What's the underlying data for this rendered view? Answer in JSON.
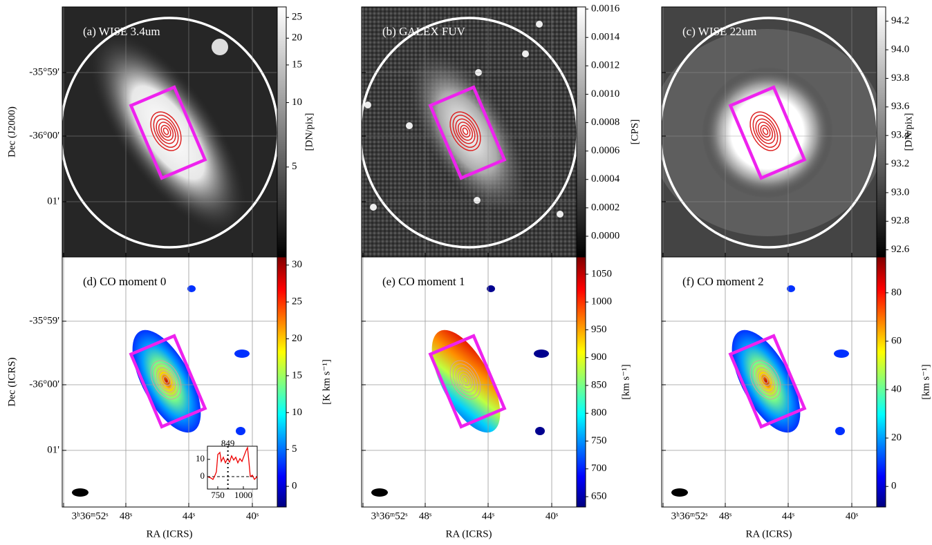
{
  "y_axis_labels": [
    "Dec (J2000)",
    "Dec (ICRS)"
  ],
  "dec_ticks": [
    "-35°59'",
    "-36°00'",
    "01'"
  ],
  "ra_ticks": [
    "3ʰ36ᵐ52ˢ",
    "48ˢ",
    "44ˢ",
    "40ˢ"
  ],
  "x_axis_label": "RA (ICRS)",
  "panels": [
    {
      "title": "(a) WISE 3.4um",
      "colorbar": {
        "label": "[DN/pix]",
        "colormap": "gray",
        "scale": "log",
        "lim": [
          1.9,
          28
        ],
        "ticks": [
          5,
          10,
          15,
          20,
          25
        ]
      }
    },
    {
      "title": "(b) GALEX FUV",
      "colorbar": {
        "label": "[CPS]",
        "colormap": "gray",
        "scale": "linear",
        "lim": [
          -0.000146,
          0.001615
        ],
        "ticks": [
          {
            "value": 0,
            "label": "0.0000"
          },
          {
            "value": 0.0002,
            "label": "0.0002"
          },
          {
            "value": 0.0004,
            "label": "0.0004"
          },
          {
            "value": 0.0006,
            "label": "0.0006"
          },
          {
            "value": 0.0008,
            "label": "0.0008"
          },
          {
            "value": 0.001,
            "label": "0.0010"
          },
          {
            "value": 0.0012,
            "label": "0.0012"
          },
          {
            "value": 0.0014,
            "label": "0.0014"
          },
          {
            "value": 0.0016,
            "label": "0.0016"
          }
        ]
      }
    },
    {
      "title": "(c) WISE 22um",
      "colorbar": {
        "label": "[DN/pix]",
        "colormap": "gray",
        "scale": "linear",
        "lim": [
          92.55,
          94.3
        ],
        "ticks": [
          92.6,
          92.8,
          {
            "value": 93,
            "label": "93.0"
          },
          93.2,
          93.4,
          93.6,
          93.8,
          {
            "value": 94,
            "label": "94.0"
          },
          94.2
        ]
      }
    },
    {
      "title": "(d) CO moment 0",
      "colorbar": {
        "label": "[K km s⁻¹]",
        "colormap": "jet",
        "scale": "linear",
        "lim": [
          -2.8,
          31.1
        ],
        "ticks": [
          0,
          5,
          10,
          15,
          20,
          25,
          30
        ]
      }
    },
    {
      "title": "(e) CO moment 1",
      "colorbar": {
        "label": "[km s⁻¹]",
        "colormap": "jet",
        "scale": "linear",
        "lim": [
          631.4,
          1081
        ],
        "ticks": [
          650,
          700,
          750,
          800,
          850,
          900,
          950,
          1000,
          1050
        ]
      }
    },
    {
      "title": "(f) CO moment 2",
      "colorbar": {
        "label": "[km s⁻¹]",
        "colormap": "jet",
        "scale": "linear",
        "lim": [
          -8.5,
          94.8
        ],
        "ticks": [
          0,
          20,
          40,
          60,
          80
        ]
      }
    }
  ],
  "inset": {
    "annotation": 849,
    "xlim": [
      649,
      1135
    ],
    "ylim": [
      -7.2,
      17.6
    ],
    "xticks": [
      750,
      1000
    ],
    "yticks": [
      0,
      10
    ]
  }
}
